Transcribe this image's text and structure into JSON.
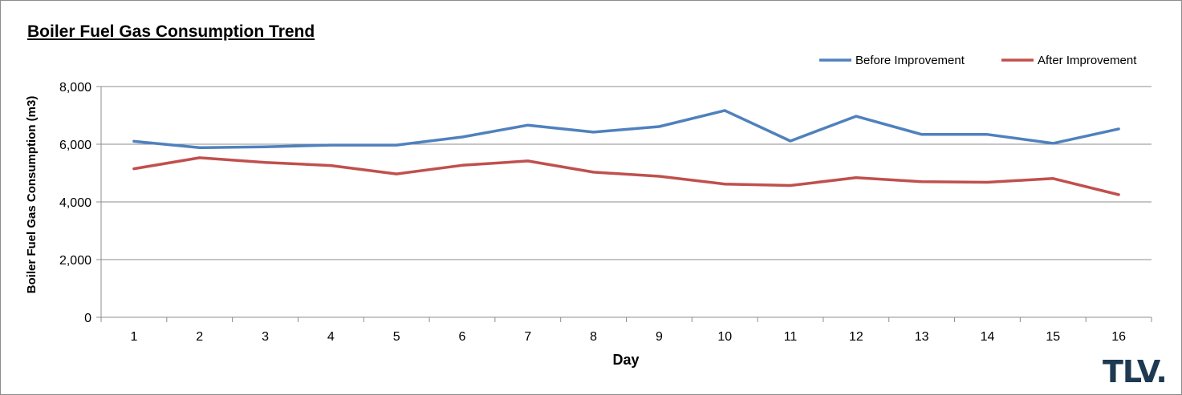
{
  "chart_data": {
    "type": "line",
    "title": "Boiler Fuel Gas Consumption Trend",
    "xlabel": "Day",
    "ylabel": "Boiler Fuel Gas Consumption (m3)",
    "categories": [
      "1",
      "2",
      "3",
      "4",
      "5",
      "6",
      "7",
      "8",
      "9",
      "10",
      "11",
      "12",
      "13",
      "14",
      "15",
      "16"
    ],
    "ylim": [
      0,
      8000
    ],
    "yticks": [
      0,
      2000,
      4000,
      6000,
      8000
    ],
    "ytick_labels": [
      "0",
      "2,000",
      "4,000",
      "6,000",
      "8,000"
    ],
    "grid": "horizontal",
    "legend_position": "top-right",
    "series": [
      {
        "name": "Before Improvement",
        "color": "#4f81bd",
        "values": [
          6100,
          5880,
          5910,
          5970,
          5970,
          6250,
          6660,
          6420,
          6610,
          7170,
          6110,
          6970,
          6340,
          6340,
          6030,
          6530
        ]
      },
      {
        "name": "After Improvement",
        "color": "#c0504d",
        "values": [
          5150,
          5530,
          5370,
          5260,
          4970,
          5270,
          5420,
          5030,
          4890,
          4620,
          4570,
          4840,
          4700,
          4680,
          4810,
          4250
        ]
      }
    ]
  },
  "logo_text": "TLV."
}
